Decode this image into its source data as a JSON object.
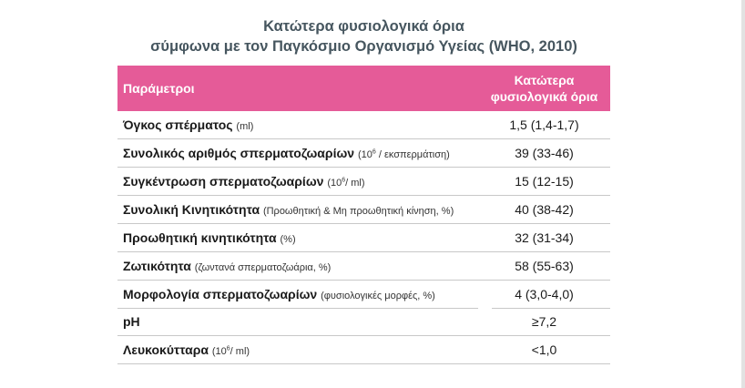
{
  "title_line1": "Κατώτερα φυσιολογικά όρια",
  "title_line2": "σύμφωνα με τον Παγκόσμιο Οργανισμό Υγείας (WHO, 2010)",
  "header": {
    "param": "Παράμετροι",
    "limits_line1": "Κατώτερα",
    "limits_line2": "φυσιολογικά όρια"
  },
  "rows": [
    {
      "name": "Όγκος σπέρματος",
      "unit_pre": "(ml)",
      "sup": "",
      "unit_post": "",
      "value": "1,5 (1,4-1,7)"
    },
    {
      "name": "Συνολικός αριθμός σπερματοζωαρίων",
      "unit_pre": "(10",
      "sup": "6",
      "unit_post": " / εκσπερμάτιση)",
      "value": "39 (33-46)"
    },
    {
      "name": "Συγκέντρωση σπερματοζωαρίων",
      "unit_pre": "(10",
      "sup": "6",
      "unit_post": "/ ml)",
      "value": "15 (12-15)"
    },
    {
      "name": "Συνολική Κινητικότητα",
      "unit_pre": "(Προωθητική & Μη προωθητική κίνηση, %)",
      "sup": "",
      "unit_post": "",
      "value": "40 (38-42)"
    },
    {
      "name": "Προωθητική κινητικότητα",
      "unit_pre": "(%)",
      "sup": "",
      "unit_post": "",
      "value": "32 (31-34)"
    },
    {
      "name": "Ζωτικότητα",
      "unit_pre": "(ζωντανά σπερματοζωάρια, %)",
      "sup": "",
      "unit_post": "",
      "value": "58 (55-63)"
    },
    {
      "name": "Μορφολογία σπερματοζωαρίων",
      "unit_pre": " (φυσιολογικές μορφές, %)",
      "sup": "",
      "unit_post": "",
      "value": "4 (3,0-4,0)"
    },
    {
      "name": "pH",
      "unit_pre": "",
      "sup": "",
      "unit_post": "",
      "value": "≥7,2"
    },
    {
      "name": "Λευκοκύτταρα",
      "unit_pre": "(10",
      "sup": "6",
      "unit_post": "/ ml)",
      "value": "<1,0"
    }
  ],
  "colors": {
    "header_bg": "#e55b98",
    "title": "#46565f"
  }
}
